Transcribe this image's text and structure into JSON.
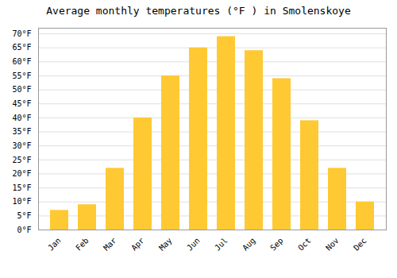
{
  "chart_data": {
    "type": "bar",
    "title": "Average monthly temperatures (°F ) in Smolenskoye",
    "categories": [
      "Jan",
      "Feb",
      "Mar",
      "Apr",
      "May",
      "Jun",
      "Jul",
      "Aug",
      "Sep",
      "Oct",
      "Nov",
      "Dec"
    ],
    "values": [
      7,
      9,
      22,
      40,
      55,
      65,
      69,
      64,
      54,
      39,
      22,
      10
    ],
    "color": "#FFC933",
    "ylim": [
      0,
      72
    ],
    "yticks": [
      {
        "value": 0,
        "label": "0°F"
      },
      {
        "value": 5,
        "label": "5°F"
      },
      {
        "value": 10,
        "label": "10°F"
      },
      {
        "value": 15,
        "label": "15°F"
      },
      {
        "value": 20,
        "label": "20°F"
      },
      {
        "value": 25,
        "label": "25°F"
      },
      {
        "value": 30,
        "label": "30°F"
      },
      {
        "value": 35,
        "label": "35°F"
      },
      {
        "value": 40,
        "label": "40°F"
      },
      {
        "value": 45,
        "label": "45°F"
      },
      {
        "value": 50,
        "label": "50°F"
      },
      {
        "value": 55,
        "label": "55°F"
      },
      {
        "value": 60,
        "label": "60°F"
      },
      {
        "value": 65,
        "label": "65°F"
      },
      {
        "value": 70,
        "label": "70°F"
      }
    ],
    "grid": true
  }
}
